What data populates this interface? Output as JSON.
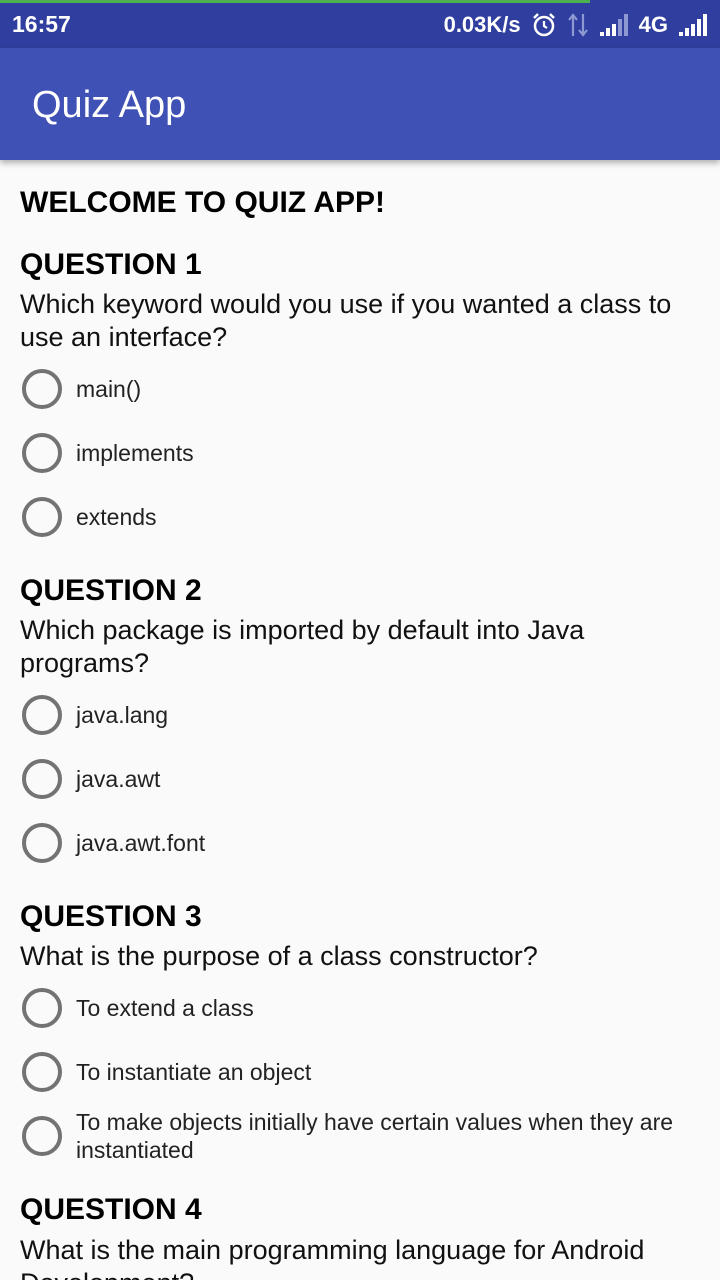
{
  "status_bar": {
    "time": "16:57",
    "speed": "0.03K/s",
    "network": "4G",
    "icons": [
      "alarm-icon",
      "data-arrows-icon",
      "signal-icon",
      "signal-icon"
    ],
    "colors": {
      "background": "#303f9f",
      "progress": "#4caf50"
    }
  },
  "app_bar": {
    "title": "Quiz App",
    "color": "#3f51b5"
  },
  "welcome": "WELCOME TO QUIZ APP!",
  "questions": [
    {
      "title": "QUESTION 1",
      "text": "Which keyword would you use if you wanted a class to use an interface?",
      "options": [
        "main()",
        "implements",
        "extends"
      ]
    },
    {
      "title": "QUESTION 2",
      "text": "Which package is imported by default into Java programs?",
      "options": [
        "java.lang",
        "java.awt",
        "java.awt.font"
      ]
    },
    {
      "title": "QUESTION 3",
      "text": "What is the purpose of a class constructor?",
      "options": [
        "To extend a class",
        "To instantiate an object",
        "To make objects initially have certain values when they are instantiated"
      ]
    },
    {
      "title": "QUESTION 4",
      "text": "What is the main programming language for Android Development?",
      "options": []
    }
  ]
}
